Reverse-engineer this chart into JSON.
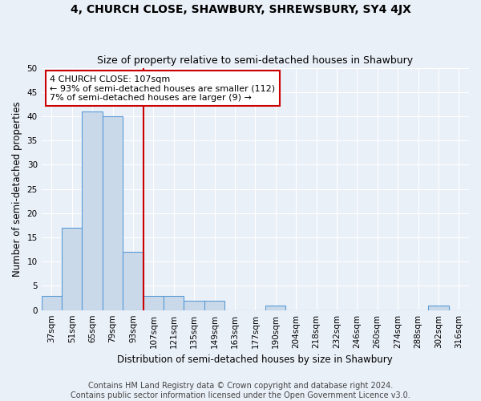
{
  "title": "4, CHURCH CLOSE, SHAWBURY, SHREWSBURY, SY4 4JX",
  "subtitle": "Size of property relative to semi-detached houses in Shawbury",
  "xlabel": "Distribution of semi-detached houses by size in Shawbury",
  "ylabel": "Number of semi-detached properties",
  "categories": [
    "37sqm",
    "51sqm",
    "65sqm",
    "79sqm",
    "93sqm",
    "107sqm",
    "121sqm",
    "135sqm",
    "149sqm",
    "163sqm",
    "177sqm",
    "190sqm",
    "204sqm",
    "218sqm",
    "232sqm",
    "246sqm",
    "260sqm",
    "274sqm",
    "288sqm",
    "302sqm",
    "316sqm"
  ],
  "values": [
    3,
    17,
    41,
    40,
    12,
    3,
    3,
    2,
    2,
    0,
    0,
    1,
    0,
    0,
    0,
    0,
    0,
    0,
    0,
    1,
    0
  ],
  "bar_color": "#c9d9ea",
  "bar_edge_color": "#5b9bd5",
  "highlight_index": 5,
  "highlight_line_color": "#cc0000",
  "ylim": [
    0,
    50
  ],
  "yticks": [
    0,
    5,
    10,
    15,
    20,
    25,
    30,
    35,
    40,
    45,
    50
  ],
  "annotation_text": "4 CHURCH CLOSE: 107sqm\n← 93% of semi-detached houses are smaller (112)\n7% of semi-detached houses are larger (9) →",
  "annotation_box_color": "#ffffff",
  "annotation_box_edge_color": "#cc0000",
  "footer_line1": "Contains HM Land Registry data © Crown copyright and database right 2024.",
  "footer_line2": "Contains public sector information licensed under the Open Government Licence v3.0.",
  "background_color": "#eaf0f8",
  "plot_bg_color": "#eaf0f8",
  "grid_color": "#ffffff",
  "title_fontsize": 10,
  "subtitle_fontsize": 9,
  "axis_label_fontsize": 8.5,
  "tick_fontsize": 7.5,
  "annotation_fontsize": 8,
  "footer_fontsize": 7
}
